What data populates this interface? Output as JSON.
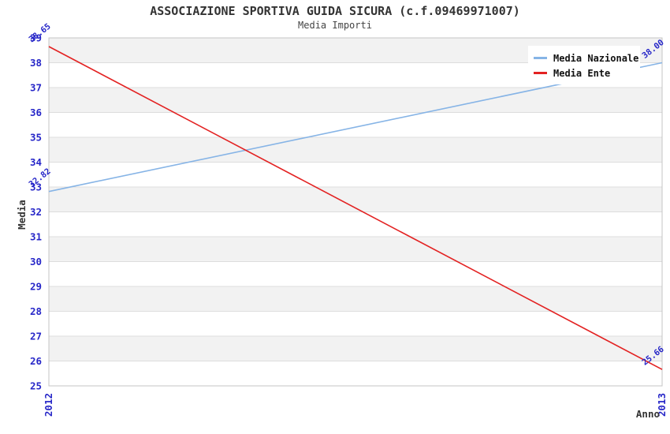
{
  "chart_data": {
    "type": "line",
    "title": "ASSOCIAZIONE SPORTIVA GUIDA SICURA (c.f.09469971007)",
    "subtitle": "Media Importi",
    "xlabel": "Anno",
    "ylabel": "Media",
    "categories": [
      "2012",
      "2013"
    ],
    "ylim": [
      25,
      39
    ],
    "ytick_step": 1,
    "grid": "horizontal-bands",
    "legend_position": "top-right",
    "series": [
      {
        "name": "Media Nazionale",
        "color": "#86b4e6",
        "values": [
          32.82,
          38.0
        ],
        "point_labels": [
          "32.82",
          "38.00"
        ]
      },
      {
        "name": "Media Ente",
        "color": "#e32222",
        "values": [
          38.65,
          25.66
        ],
        "point_labels": [
          "38.65",
          "25.66"
        ]
      }
    ]
  },
  "colors": {
    "title": "#333333",
    "subtitle": "#444444",
    "tick_label": "#2727c8",
    "point_label": "#2727c8",
    "axis_title": "#333333",
    "band_gray": "#f2f2f2",
    "band_white": "#ffffff",
    "gridline": "#dddddd",
    "frame": "#c4c4c4",
    "legend_bg": "#ffffff",
    "legend_text": "#111111"
  }
}
